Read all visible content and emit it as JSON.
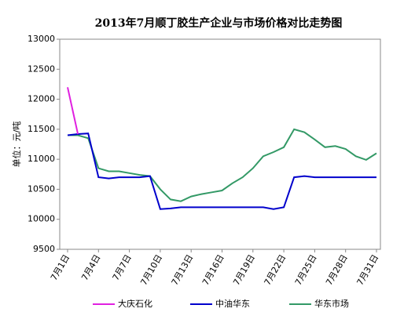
{
  "chart_data": {
    "type": "line",
    "title": "2013年7月顺丁胶生产企业与市场价格对比走势图",
    "y_label": "单位：元/吨",
    "categories": [
      "7月1日",
      null,
      null,
      "7月4日",
      null,
      null,
      "7月7日",
      null,
      null,
      "7月10日",
      null,
      null,
      "7月13日",
      null,
      null,
      "7月16日",
      null,
      null,
      "7月19日",
      null,
      null,
      "7月22日",
      null,
      null,
      "7月25日",
      null,
      null,
      "7月28日",
      null,
      null,
      "7月31日"
    ],
    "series": [
      {
        "name": "大庆石化",
        "color": "#e020e0",
        "values": [
          12200,
          11420,
          null,
          null,
          null,
          null,
          null,
          null,
          null,
          null,
          null,
          null,
          null,
          null,
          null,
          null,
          null,
          null,
          null,
          null,
          null,
          null,
          null,
          null,
          null,
          null,
          null,
          null,
          null,
          null,
          null
        ]
      },
      {
        "name": "中油华东",
        "color": "#0000cc",
        "values": [
          11400,
          11420,
          11430,
          10700,
          10680,
          10700,
          10700,
          10700,
          10720,
          10170,
          10180,
          10200,
          10200,
          10200,
          10200,
          10200,
          10200,
          10200,
          10200,
          10200,
          10170,
          10200,
          10700,
          10720,
          10700,
          10700,
          10700,
          10700,
          10700,
          10700,
          10700
        ]
      },
      {
        "name": "华东市场",
        "color": "#339966",
        "values": [
          11400,
          11400,
          11350,
          10850,
          10800,
          10800,
          10770,
          10740,
          10720,
          10500,
          10330,
          10300,
          10380,
          10420,
          10450,
          10480,
          10600,
          10700,
          10850,
          11050,
          11120,
          11200,
          11500,
          11450,
          11330,
          11200,
          11220,
          11170,
          11050,
          10990,
          11100
        ]
      }
    ],
    "ylim": [
      9500,
      13000
    ],
    "yticks": [
      9500,
      10000,
      10500,
      11000,
      11500,
      12000,
      12500,
      13000
    ],
    "grid": false
  }
}
